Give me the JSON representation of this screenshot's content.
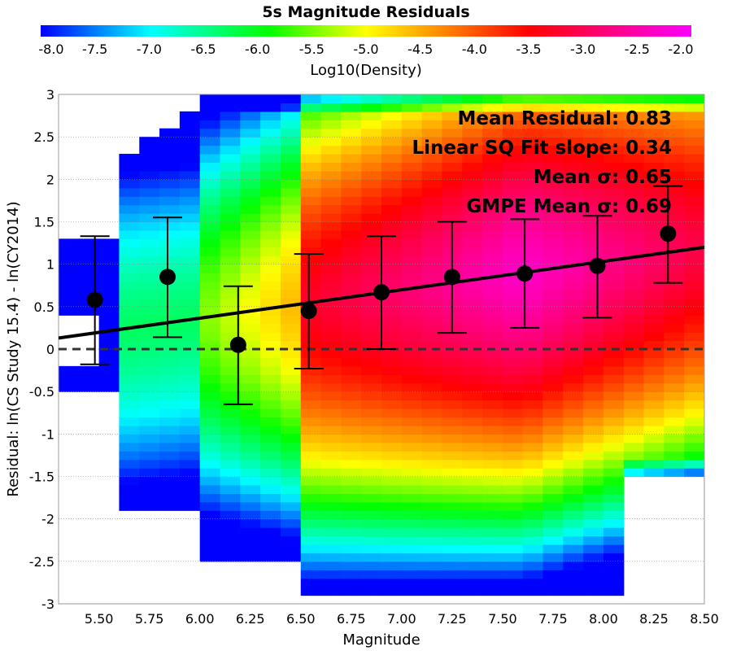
{
  "chart_data": {
    "type": "heatmap",
    "title": "5s Magnitude Residuals",
    "xlabel": "Magnitude",
    "ylabel": "Residual: ln(CS Study 15.4) - ln(CY2014)",
    "colorbar": {
      "label": "Log10(Density)",
      "range": [
        -8.0,
        -2.0
      ],
      "ticks": [
        "-8.0",
        "-7.5",
        "-7.0",
        "-6.5",
        "-6.0",
        "-5.5",
        "-5.0",
        "-4.5",
        "-4.0",
        "-3.5",
        "-3.0",
        "-2.5",
        "-2.0"
      ],
      "colormap": "rainbow blue-cyan-green-yellow-red-magenta"
    },
    "xlim": [
      5.3,
      8.5
    ],
    "ylim": [
      -3,
      3
    ],
    "xticks": [
      "5.50",
      "5.75",
      "6.00",
      "6.25",
      "6.50",
      "6.75",
      "7.00",
      "7.25",
      "7.50",
      "7.75",
      "8.00",
      "8.25",
      "8.50"
    ],
    "yticks": [
      "-3",
      "-2.5",
      "-2",
      "-1.5",
      "-1",
      "-0.5",
      "0",
      "0.5",
      "1",
      "1.5",
      "2",
      "2.5",
      "3"
    ],
    "grid": true,
    "annotations": [
      "Mean Residual: 0.83",
      "Linear SQ Fit slope: 0.34",
      "Mean σ: 0.65",
      "GMPE Mean σ: 0.69"
    ],
    "binned_means": [
      {
        "x": 5.48,
        "mean": 0.58,
        "lo": -0.18,
        "hi": 1.33
      },
      {
        "x": 5.84,
        "mean": 0.85,
        "lo": 0.14,
        "hi": 1.55
      },
      {
        "x": 6.19,
        "mean": 0.05,
        "lo": -0.65,
        "hi": 0.74
      },
      {
        "x": 6.54,
        "mean": 0.45,
        "lo": -0.23,
        "hi": 1.12
      },
      {
        "x": 6.9,
        "mean": 0.67,
        "lo": 0.0,
        "hi": 1.33
      },
      {
        "x": 7.25,
        "mean": 0.85,
        "lo": 0.19,
        "hi": 1.5
      },
      {
        "x": 7.61,
        "mean": 0.89,
        "lo": 0.25,
        "hi": 1.53
      },
      {
        "x": 7.97,
        "mean": 0.98,
        "lo": 0.37,
        "hi": 1.57
      },
      {
        "x": 8.32,
        "mean": 1.36,
        "lo": 0.78,
        "hi": 1.92
      }
    ],
    "fit_line": {
      "x": [
        5.3,
        8.5
      ],
      "y": [
        0.13,
        1.2
      ]
    },
    "zero_line": 0,
    "heatmap_bins": {
      "dx": 0.1,
      "dy": 0.1,
      "x0": 5.3,
      "y0": -3.0
    }
  }
}
